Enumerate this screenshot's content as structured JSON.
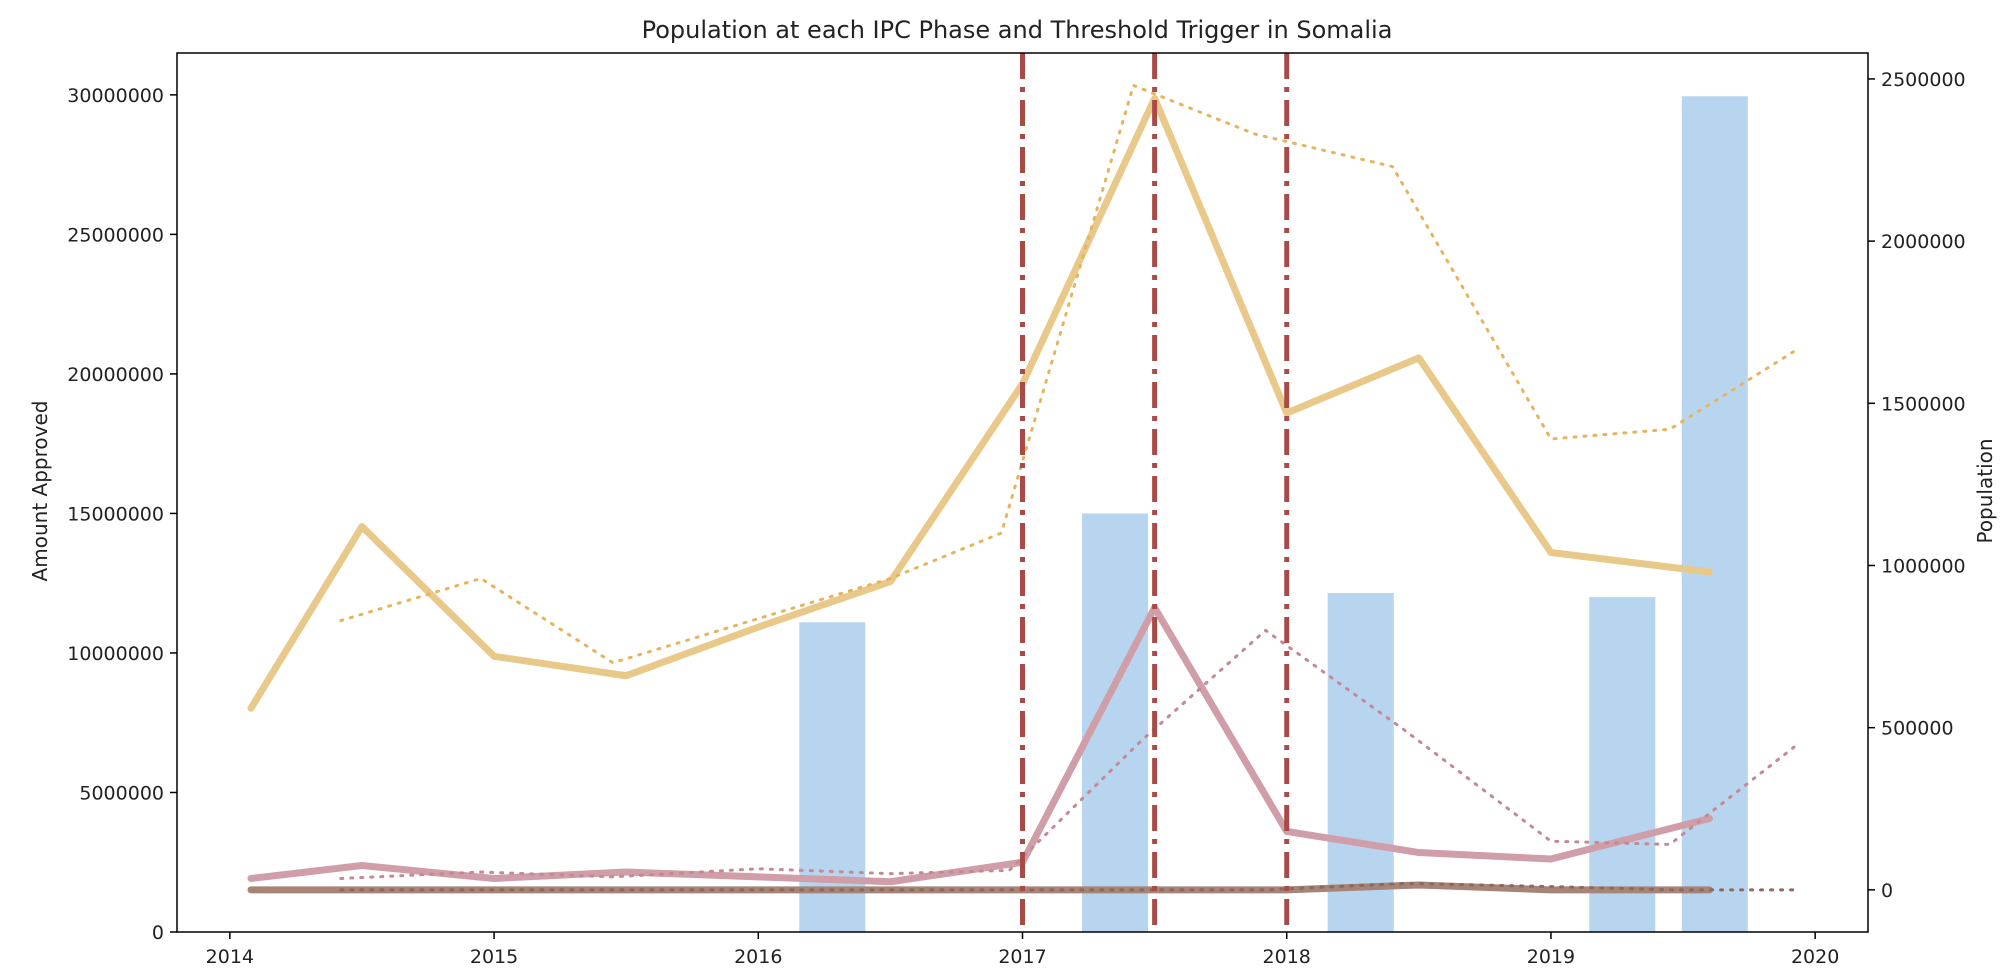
{
  "chart_data": {
    "type": "bar",
    "title": "Population at each IPC Phase and Threshold Trigger in Somalia",
    "xlabel": "",
    "ylabel_left": "Amount Approved",
    "ylabel_right": "Population",
    "x_ticks": [
      "2014",
      "2015",
      "2016",
      "2017",
      "2018",
      "2019",
      "2020"
    ],
    "y_left_ticks": [
      "0",
      "5000000",
      "10000000",
      "15000000",
      "20000000",
      "25000000",
      "30000000"
    ],
    "y_right_ticks": [
      "0",
      "500000",
      "1000000",
      "1500000",
      "2000000",
      "2500000"
    ],
    "xlim": [
      2013.8,
      2020.2
    ],
    "ylim_left": [
      0,
      31500000
    ],
    "ylim_right": [
      -130000,
      2580000
    ],
    "grid": false,
    "bars": {
      "axis": "left",
      "color": "#b8d5ef",
      "width_years": 0.25,
      "points": [
        {
          "x": 2016.28,
          "y": 11100000
        },
        {
          "x": 2017.35,
          "y": 15000000
        },
        {
          "x": 2018.28,
          "y": 12150000
        },
        {
          "x": 2019.27,
          "y": 12000000
        },
        {
          "x": 2019.62,
          "y": 29950000
        }
      ]
    },
    "series": [
      {
        "style": "solid",
        "axis": "right",
        "color": "#e9c98a",
        "x": [
          2014.08,
          2014.5,
          2015.0,
          2015.5,
          2016.0,
          2016.5,
          2017.0,
          2017.5,
          2018.0,
          2018.5,
          2019.0,
          2019.6
        ],
        "y": [
          560000,
          1120000,
          720000,
          660000,
          810000,
          950000,
          1560000,
          2440000,
          1470000,
          1640000,
          1040000,
          980000
        ]
      },
      {
        "style": "dotted",
        "axis": "right",
        "color": "#e6b45c",
        "x": [
          2014.42,
          2014.95,
          2015.45,
          2016.5,
          2016.92,
          2017.42,
          2017.88,
          2018.4,
          2019.0,
          2019.45,
          2019.92
        ],
        "y": [
          830000,
          960000,
          700000,
          960000,
          1100000,
          2480000,
          2330000,
          2230000,
          1390000,
          1420000,
          1660000
        ]
      },
      {
        "style": "solid",
        "axis": "right",
        "color": "#cf9ea8",
        "x": [
          2014.08,
          2014.5,
          2015.0,
          2015.5,
          2016.0,
          2016.5,
          2017.0,
          2017.5,
          2018.0,
          2018.5,
          2019.0,
          2019.6
        ],
        "y": [
          35000,
          75000,
          35000,
          55000,
          40000,
          25000,
          85000,
          870000,
          180000,
          115000,
          95000,
          220000
        ]
      },
      {
        "style": "dotted",
        "axis": "right",
        "color": "#c48a93",
        "x": [
          2014.42,
          2014.95,
          2015.45,
          2016.0,
          2016.5,
          2016.95,
          2017.45,
          2017.92,
          2018.45,
          2019.0,
          2019.45,
          2019.92
        ],
        "y": [
          35000,
          55000,
          40000,
          65000,
          50000,
          60000,
          460000,
          800000,
          490000,
          150000,
          140000,
          440000
        ]
      },
      {
        "style": "solid",
        "axis": "right",
        "color": "#a68478",
        "x": [
          2014.08,
          2014.5,
          2015.0,
          2015.5,
          2016.0,
          2016.5,
          2017.0,
          2017.5,
          2018.0,
          2018.5,
          2019.0,
          2019.6
        ],
        "y": [
          0,
          0,
          0,
          0,
          0,
          0,
          0,
          0,
          0,
          15000,
          0,
          0
        ]
      },
      {
        "style": "dotted",
        "axis": "right",
        "color": "#8a6a5e",
        "x": [
          2014.42,
          2014.95,
          2015.45,
          2016.0,
          2016.5,
          2016.95,
          2017.45,
          2017.92,
          2018.45,
          2019.0,
          2019.45,
          2019.92
        ],
        "y": [
          0,
          0,
          0,
          0,
          0,
          0,
          0,
          0,
          20000,
          10000,
          0,
          0
        ]
      }
    ],
    "threshold_triggers": {
      "color": "#a84b48",
      "x": [
        2017.0,
        2017.5,
        2018.0
      ]
    }
  }
}
